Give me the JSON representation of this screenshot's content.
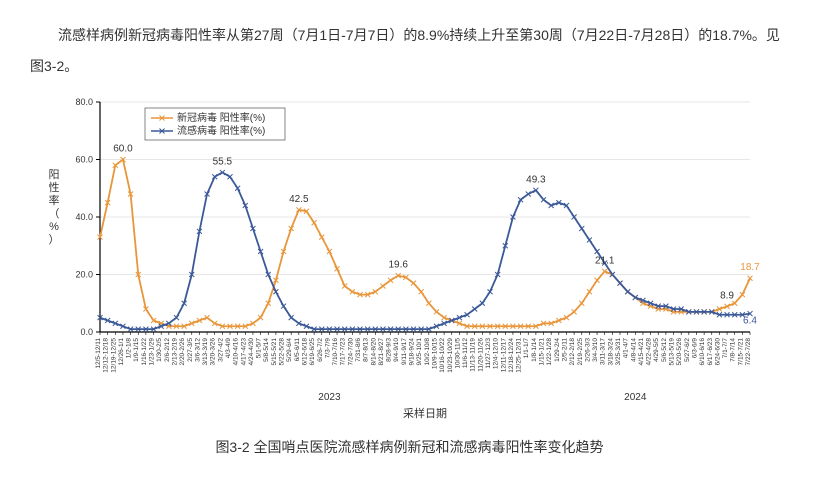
{
  "description": "流感样病例新冠病毒阳性率从第27周（7月1日-7月7日）的8.9%持续上升至第30周（7月22日-7月28日）的18.7%。见图3-2。",
  "caption": "图3-2 全国哨点医院流感样病例新冠和流感病毒阳性率变化趋势",
  "chart": {
    "type": "line",
    "ylabel": "阳性率（%）",
    "xlabel": "采样日期",
    "ylim": [
      0,
      80
    ],
    "ytick_step": 20,
    "yticks": [
      "0.0",
      "20.0",
      "40.0",
      "60.0",
      "80.0"
    ],
    "background_color": "#ffffff",
    "grid_color": "#d0d0d0",
    "axis_color": "#000000",
    "label_fontsize": 12,
    "tick_fontsize": 9,
    "marker_size": 2.5,
    "line_width": 1.8,
    "legend": {
      "position": "top-left-inset",
      "items": [
        {
          "label": "新冠病毒 阳性率(%)",
          "color": "#e8963a",
          "marker": "x"
        },
        {
          "label": "流感病毒 阳性率(%)",
          "color": "#3b5998",
          "marker": "x"
        }
      ],
      "border_color": "#666",
      "fontsize": 10
    },
    "year_markers": [
      "2023",
      "2024"
    ],
    "xticks": [
      "12/5-12/11",
      "12/12-12/18",
      "12/19-12/25",
      "12/26-1/1",
      "1/2-1/8",
      "1/9-1/15",
      "1/16-1/22",
      "1/23-1/29",
      "1/30-2/5",
      "2/6-2/12",
      "2/13-2/19",
      "2/20-2/26",
      "2/27-3/5",
      "3/6-3/12",
      "3/13-3/19",
      "3/20-3/26",
      "3/27-4/2",
      "4/3-4/9",
      "4/10-4/16",
      "4/17-4/23",
      "4/24-4/30",
      "5/1-5/7",
      "5/8-5/14",
      "5/15-5/21",
      "5/22-5/28",
      "5/29-6/4",
      "6/5-6/11",
      "6/12-6/18",
      "6/19-6/25",
      "6/26-7/2",
      "7/3-7/9",
      "7/10-7/16",
      "7/17-7/23",
      "7/24-7/30",
      "7/31-8/6",
      "8/7-8/13",
      "8/14-8/20",
      "8/21-8/27",
      "8/28-9/3",
      "9/4-9/10",
      "9/11-9/17",
      "9/18-9/24",
      "9/25-10/1",
      "10/2-10/8",
      "10/9-10/15",
      "10/16-10/22",
      "10/23-10/29",
      "10/30-11/5",
      "11/6-11/12",
      "11/13-11/19",
      "11/20-11/26",
      "11/27-12/3",
      "12/4-12/10",
      "12/11-12/17",
      "12/18-12/24",
      "12/25-12/31",
      "1/1-1/7",
      "1/8-1/14",
      "1/15-1/21",
      "1/22-1/28",
      "1/29-2/4",
      "2/5-2/11",
      "2/12-2/18",
      "2/19-2/25",
      "2/26-3/3",
      "3/4-3/10",
      "3/11-3/17",
      "3/18-3/24",
      "3/25-3/31",
      "4/1-4/7",
      "4/8-4/14",
      "4/15-4/21",
      "4/22-4/28",
      "4/29-5/5",
      "5/6-5/12",
      "5/13-5/19",
      "5/20-5/26",
      "5/27-6/2",
      "6/3-6/9",
      "6/10-6/16",
      "6/17-6/23",
      "6/24-6/30",
      "7/1-7/7",
      "7/8-7/14",
      "7/15-7/21",
      "7/22-7/28"
    ],
    "series": [
      {
        "name": "covid",
        "color": "#e8963a",
        "marker": "x",
        "values": [
          33,
          45,
          58,
          60,
          48,
          20,
          8,
          4,
          3,
          2,
          2,
          2,
          3,
          4,
          5,
          3,
          2,
          2,
          2,
          2,
          3,
          5,
          10,
          18,
          28,
          36,
          42.5,
          42,
          38,
          33,
          28,
          22,
          16,
          14,
          13,
          13,
          14,
          16,
          18,
          19.6,
          19,
          17,
          14,
          10,
          7,
          5,
          4,
          3,
          2,
          2,
          2,
          2,
          2,
          2,
          2,
          2,
          2,
          2,
          3,
          3,
          4,
          5,
          7,
          10,
          14,
          18,
          21.1,
          20,
          17,
          14,
          12,
          10,
          9,
          8,
          8,
          7,
          7,
          7,
          7,
          7,
          7,
          8,
          8.9,
          10,
          13,
          18.7
        ]
      },
      {
        "name": "flu",
        "color": "#3b5998",
        "marker": "x",
        "values": [
          5,
          4,
          3,
          2,
          1,
          1,
          1,
          1,
          2,
          3,
          5,
          10,
          20,
          35,
          48,
          54,
          55.5,
          54,
          50,
          44,
          36,
          28,
          20,
          14,
          9,
          5,
          3,
          2,
          1,
          1,
          1,
          1,
          1,
          1,
          1,
          1,
          1,
          1,
          1,
          1,
          1,
          1,
          1,
          1,
          2,
          3,
          4,
          5,
          6,
          8,
          10,
          14,
          20,
          30,
          40,
          46,
          48,
          49.3,
          46,
          44,
          45,
          44,
          40,
          36,
          32,
          28,
          24,
          20,
          17,
          14,
          12,
          11,
          10,
          9,
          9,
          8,
          8,
          7,
          7,
          7,
          7,
          6,
          6,
          6,
          6,
          6.4
        ]
      }
    ],
    "annotations": [
      {
        "text": "60.0",
        "x_index": 3,
        "y": 60,
        "dy": -8,
        "color": "#333"
      },
      {
        "text": "55.5",
        "x_index": 16,
        "y": 55.5,
        "dy": -8,
        "color": "#333"
      },
      {
        "text": "42.5",
        "x_index": 26,
        "y": 42.5,
        "dy": -8,
        "color": "#333"
      },
      {
        "text": "19.6",
        "x_index": 39,
        "y": 19.6,
        "dy": -8,
        "color": "#333"
      },
      {
        "text": "49.3",
        "x_index": 57,
        "y": 49.3,
        "dy": -8,
        "color": "#333"
      },
      {
        "text": "21.1",
        "x_index": 66,
        "y": 21.1,
        "dy": -8,
        "color": "#333"
      },
      {
        "text": "8.9",
        "x_index": 82,
        "y": 8.9,
        "dy": -8,
        "color": "#333"
      },
      {
        "text": "18.7",
        "x_index": 85,
        "y": 18.7,
        "dy": -8,
        "color": "#e8963a"
      },
      {
        "text": "6.4",
        "x_index": 85,
        "y": 6.4,
        "dy": 10,
        "color": "#3b5998"
      }
    ]
  }
}
